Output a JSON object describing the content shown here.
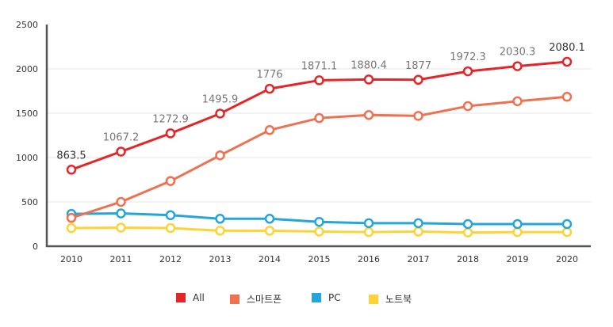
{
  "chart_data": {
    "type": "line",
    "title": "",
    "xlabel": "",
    "ylabel": "",
    "x": [
      "2010",
      "2011",
      "2012",
      "2013",
      "2014",
      "2015",
      "2016",
      "2017",
      "2018",
      "2019",
      "2020"
    ],
    "ylim": [
      0,
      2500
    ],
    "yticks": [
      "0",
      "500",
      "1000",
      "1500",
      "2000",
      "2500"
    ],
    "grid": true,
    "legend_position": "bottom-center",
    "series": [
      {
        "name": "All",
        "color": "#e52528",
        "values": [
          863.5,
          1067.2,
          1272.9,
          1495.9,
          1776,
          1871.1,
          1880.4,
          1877,
          1972.3,
          2030.3,
          2080.1
        ],
        "labels": [
          "863.5",
          "1067.2",
          "1272.9",
          "1495.9",
          "1776",
          "1871.1",
          "1880.4",
          "1877",
          "1972.3",
          "2030.3",
          "2080.1"
        ]
      },
      {
        "name": "스마트폰",
        "color": "#ef7150",
        "values": [
          320,
          500,
          735,
          1025,
          1310,
          1445,
          1480,
          1470,
          1580,
          1635,
          1685
        ]
      },
      {
        "name": "PC",
        "color": "#25a6da",
        "values": [
          365,
          370,
          350,
          310,
          310,
          275,
          260,
          260,
          250,
          250,
          250
        ]
      },
      {
        "name": "노트북",
        "color": "#fdd335",
        "values": [
          205,
          210,
          205,
          175,
          175,
          165,
          160,
          165,
          155,
          160,
          160
        ]
      }
    ]
  }
}
